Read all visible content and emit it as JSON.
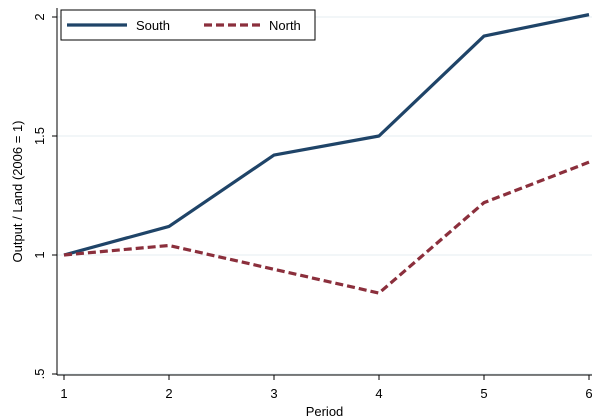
{
  "chart_data": {
    "type": "line",
    "xlabel": "Period",
    "ylabel": "Output / Land (2006 = 1)",
    "x": [
      1,
      2,
      3,
      4,
      5,
      6
    ],
    "xlim": [
      1,
      6
    ],
    "ylim": [
      0.5,
      2
    ],
    "xticks": [
      1,
      2,
      3,
      4,
      5,
      6
    ],
    "yticks": [
      0.5,
      1,
      1.5,
      2
    ],
    "ytick_labels": [
      ".5",
      "1",
      "1.5",
      "2"
    ],
    "grid": true,
    "legend_position": "top-left",
    "series": [
      {
        "name": "South",
        "color": "#1f4468",
        "style": "solid",
        "values": [
          1.0,
          1.12,
          1.42,
          1.5,
          1.92,
          2.01
        ]
      },
      {
        "name": "North",
        "color": "#8b2f3c",
        "style": "dashed",
        "values": [
          1.0,
          1.04,
          0.94,
          0.84,
          1.22,
          1.39
        ]
      }
    ]
  }
}
